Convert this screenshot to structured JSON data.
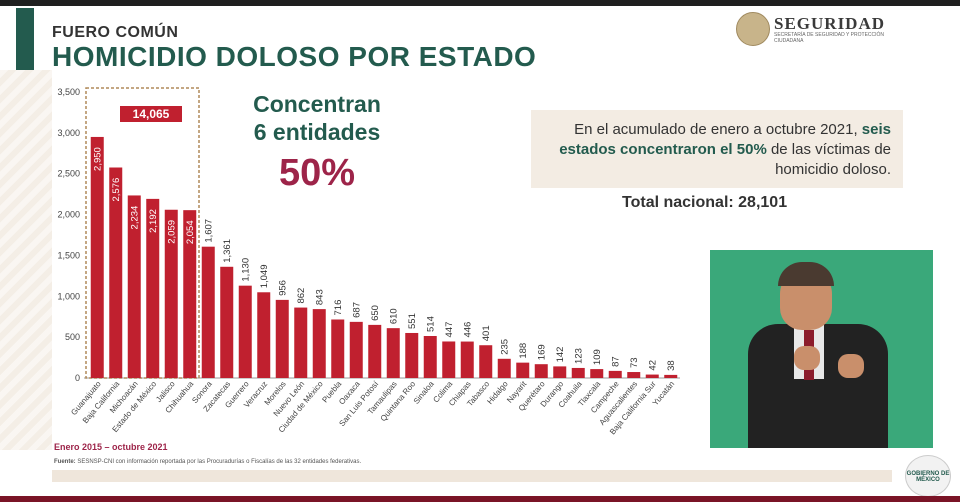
{
  "header": {
    "subtitle": "FUERO COMÚN",
    "title": "HOMICIDIO DOLOSO POR ESTADO"
  },
  "logo": {
    "name": "SEGURIDAD",
    "tagline": "SECRETARÍA DE SEGURIDAD Y PROTECCIÓN CIUDADANA"
  },
  "callout": {
    "line1": "Concentran",
    "line2": "6 entidades",
    "percent": "50%"
  },
  "info": {
    "text_before": "En el acumulado de enero a octubre 2021, ",
    "text_bold": "seis estados concentraron el 50%",
    "text_after": " de las víctimas de homicidio doloso."
  },
  "total": "Total nacional: 28,101",
  "period": "Enero 2015 – octubre 2021",
  "source": {
    "label": "Fuente:",
    "text": "SESNSP-CNI con información reportada por las Procuradurías o Fiscalías de las 32 entidades federativas."
  },
  "gob_badge": "GOBIERNO DE MÉXICO",
  "colors": {
    "bar": "#c0202f",
    "accent_green": "#235b4e",
    "accent_red": "#9d2449",
    "highlight_box": "#b08a5a"
  },
  "chart_data": {
    "type": "bar",
    "title": "HOMICIDIO DOLOSO POR ESTADO",
    "categories": [
      "Guanajuato",
      "Baja California",
      "Michoacán",
      "Estado de México",
      "Jalisco",
      "Chihuahua",
      "Sonora",
      "Zacatecas",
      "Guerrero",
      "Veracruz",
      "Morelos",
      "Nuevo León",
      "Ciudad de México",
      "Puebla",
      "Oaxaca",
      "San Luis Potosí",
      "Tamaulipas",
      "Quintana Roo",
      "Sinaloa",
      "Colima",
      "Chiapas",
      "Tabasco",
      "Hidalgo",
      "Nayarit",
      "Querétaro",
      "Durango",
      "Coahuila",
      "Tlaxcala",
      "Campeche",
      "Aguascalientes",
      "Baja California Sur",
      "Yucatán"
    ],
    "values": [
      2950,
      2576,
      2234,
      2192,
      2059,
      2054,
      1607,
      1361,
      1130,
      1049,
      956,
      862,
      843,
      716,
      687,
      650,
      610,
      551,
      514,
      447,
      446,
      401,
      235,
      188,
      169,
      142,
      123,
      109,
      87,
      73,
      42,
      38
    ],
    "value_labels": [
      "2,950",
      "2,576",
      "2,234",
      "2,192",
      "2,059",
      "2,054",
      "1,607",
      "1,361",
      "1,130",
      "1,049",
      "956",
      "862",
      "843",
      "716",
      "687",
      "650",
      "610",
      "551",
      "514",
      "447",
      "446",
      "401",
      "235",
      "188",
      "169",
      "142",
      "123",
      "109",
      "87",
      "73",
      "42",
      "38"
    ],
    "yticks": [
      "3,500",
      "3,000",
      "2,500",
      "2,000",
      "1,500",
      "1,000",
      "500",
      "0"
    ],
    "ytick_values": [
      3500,
      3000,
      2500,
      2000,
      1500,
      1000,
      500,
      0
    ],
    "ylim": [
      0,
      3500
    ],
    "highlight_count": 6,
    "highlight_label": "14,065",
    "xlabel": "",
    "ylabel": "",
    "grid": false,
    "legend": "none"
  }
}
